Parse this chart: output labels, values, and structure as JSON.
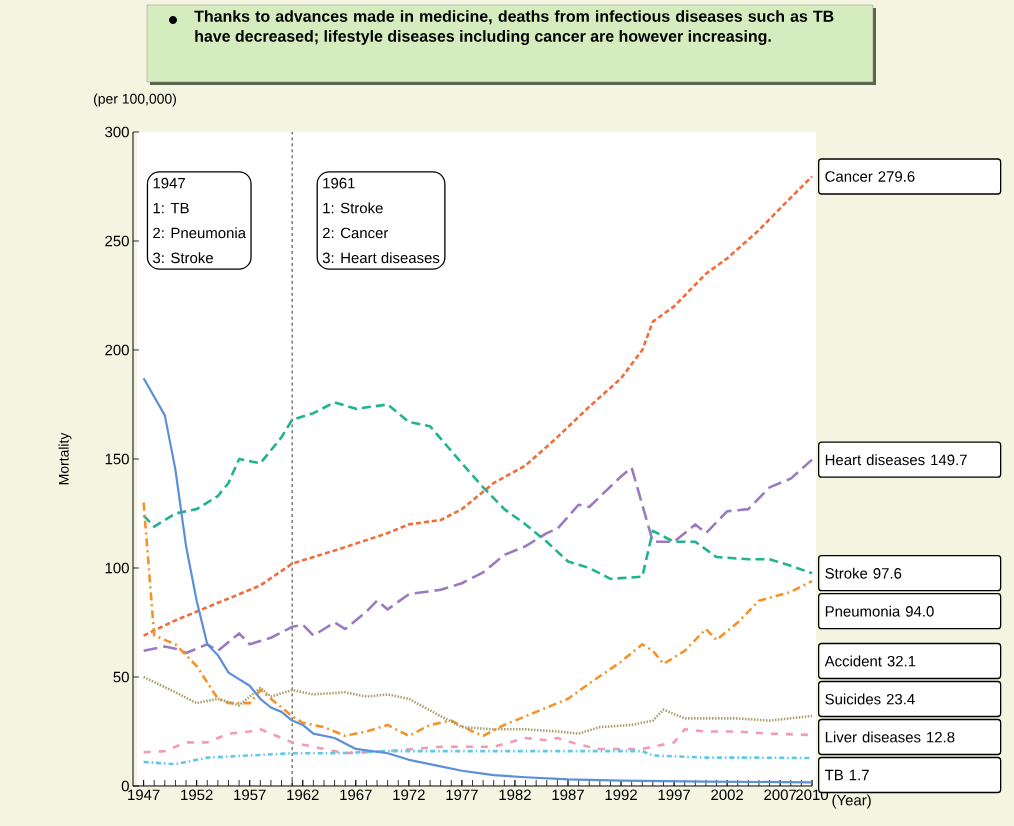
{
  "chart_data": {
    "type": "line",
    "title": "Thanks to advances made in medicine, deaths from infectious diseases such as TB have decreased; lifestyle diseases including cancer are however increasing.",
    "ylabel": "Mortality",
    "xlabel": "(Year)",
    "annotations": [
      "(per 100,000)",
      "1947",
      "1: TB",
      "2: Pneumonia",
      "3: Stroke",
      "1961",
      "1: Stroke",
      "2: Cancer",
      "3: Heart diseases"
    ],
    "xlim": [
      1946,
      2010
    ],
    "ylim": [
      0,
      300
    ],
    "xticks": [
      1947,
      1952,
      1957,
      1962,
      1967,
      1972,
      1977,
      1982,
      1987,
      1992,
      1997,
      2002,
      2007,
      2010
    ],
    "yticks": [
      0,
      50,
      100,
      150,
      200,
      250,
      300
    ],
    "ref_lines": [
      {
        "axis": "x",
        "value": 1961,
        "color": "#000000",
        "line_style": "dashed"
      }
    ],
    "series": [
      {
        "name": "Cancer 279.6",
        "color": "#f26b3a",
        "line_style": "dashed",
        "x": [
          1947,
          1950,
          1953,
          1956,
          1958,
          1961,
          1965,
          1970,
          1972,
          1975,
          1977,
          1980,
          1983,
          1986,
          1989,
          1992,
          1994,
          1995,
          1997,
          2000,
          2002,
          2005,
          2007,
          2010
        ],
        "values": [
          69.0,
          76,
          82,
          88,
          92,
          102,
          108,
          116,
          120,
          122,
          127,
          139,
          147,
          160,
          174,
          187,
          200,
          213,
          220,
          235,
          242,
          255,
          265,
          279.6
        ]
      },
      {
        "name": "Heart diseases 149.7",
        "color": "#9b7bc0",
        "line_style": "dashed",
        "x": [
          1947,
          1949,
          1950,
          1951,
          1953,
          1954,
          1956,
          1957,
          1959,
          1961,
          1962,
          1963,
          1965,
          1966,
          1968,
          1969,
          1970,
          1972,
          1975,
          1977,
          1979,
          1981,
          1983,
          1985,
          1986,
          1988,
          1989,
          1992,
          1993,
          1995,
          1997,
          1999,
          2000,
          2002,
          2004,
          2006,
          2008,
          2010
        ],
        "values": [
          62,
          64,
          63,
          61,
          65,
          62,
          70,
          65,
          68,
          73,
          74,
          69,
          75,
          72,
          80,
          85,
          81,
          88,
          90,
          93,
          98,
          106,
          110,
          116,
          118,
          129,
          128,
          142,
          146,
          112,
          112,
          120,
          116,
          126,
          127,
          137,
          141,
          149.7
        ]
      },
      {
        "name": "Stroke 97.6",
        "color": "#1fb38e",
        "line_style": "dashed",
        "x": [
          1947,
          1948,
          1950,
          1952,
          1954,
          1955,
          1956,
          1958,
          1960,
          1961,
          1963,
          1965,
          1967,
          1970,
          1972,
          1974,
          1977,
          1979,
          1981,
          1983,
          1985,
          1987,
          1989,
          1991,
          1994,
          1995,
          1997,
          1999,
          2001,
          2004,
          2006,
          2008,
          2010
        ],
        "values": [
          124,
          119,
          125,
          127,
          133,
          139,
          150,
          148,
          160,
          168,
          171,
          176,
          173,
          175,
          167,
          165,
          148,
          137,
          127,
          120,
          112,
          103,
          100,
          95,
          96,
          117,
          112,
          112,
          105,
          104,
          104,
          101,
          97.6
        ]
      },
      {
        "name": "Pneumonia 94.0",
        "color": "#f5922a",
        "line_style": "dashed",
        "x": [
          1947,
          1948,
          1950,
          1952,
          1954,
          1955,
          1957,
          1958,
          1960,
          1961,
          1962,
          1964,
          1966,
          1968,
          1970,
          1972,
          1974,
          1976,
          1978,
          1979,
          1981,
          1984,
          1987,
          1989,
          1992,
          1994,
          1995,
          1996,
          1998,
          2000,
          2001,
          2003,
          2005,
          2008,
          2010
        ],
        "values": [
          130,
          69,
          65,
          55,
          40,
          38,
          38,
          44,
          36,
          32,
          29,
          27,
          23,
          25,
          28,
          23,
          28,
          30,
          25,
          23,
          28,
          34,
          40,
          47,
          57,
          65,
          62,
          56,
          62,
          72,
          67,
          75,
          85,
          89,
          94.0
        ]
      },
      {
        "name": "Accident 32.1",
        "color": "#a89f6a",
        "line_style": "dotted",
        "x": [
          1947,
          1950,
          1952,
          1954,
          1956,
          1958,
          1959,
          1961,
          1963,
          1966,
          1968,
          1970,
          1972,
          1975,
          1977,
          1980,
          1983,
          1986,
          1988,
          1990,
          1993,
          1995,
          1996,
          1998,
          2003,
          2006,
          2010
        ],
        "values": [
          50,
          43,
          38,
          40,
          37,
          45,
          41,
          44,
          42,
          43,
          41,
          42,
          40,
          32,
          27,
          26,
          26,
          25,
          24,
          27,
          28,
          30,
          35,
          31,
          31,
          30,
          32.1
        ]
      },
      {
        "name": "Suicides 23.4",
        "color": "#f29ab8",
        "line_style": "dashed",
        "x": [
          1947,
          1949,
          1951,
          1953,
          1955,
          1957,
          1958,
          1959,
          1961,
          1963,
          1966,
          1970,
          1975,
          1980,
          1983,
          1985,
          1986,
          1988,
          1990,
          1994,
          1997,
          1998,
          2000,
          2003,
          2006,
          2010
        ],
        "values": [
          15.5,
          16,
          20,
          20,
          24,
          25,
          26,
          24,
          20,
          18,
          15,
          16,
          18,
          18,
          22,
          21,
          22,
          19,
          17,
          17,
          20,
          26,
          25,
          25,
          24,
          23.4
        ]
      },
      {
        "name": "Liver diseases 12.8",
        "color": "#5ec8e8",
        "line_style": "dashed",
        "x": [
          1947,
          1950,
          1953,
          1957,
          1961,
          1965,
          1970,
          1975,
          1980,
          1985,
          1990,
          1994,
          1995,
          2000,
          2005,
          2010
        ],
        "values": [
          11,
          10,
          13,
          14,
          15,
          15,
          16,
          16,
          16,
          16,
          16,
          16,
          14,
          13,
          13,
          12.8
        ]
      },
      {
        "name": "TB 1.7",
        "color": "#5b8fd8",
        "line_style": "solid",
        "x": [
          1947,
          1949,
          1950,
          1951,
          1952,
          1953,
          1954,
          1955,
          1956,
          1957,
          1958,
          1959,
          1960,
          1961,
          1962,
          1963,
          1965,
          1967,
          1970,
          1972,
          1975,
          1977,
          1980,
          1983,
          1987,
          1992,
          2000,
          2010
        ],
        "values": [
          187,
          170,
          145,
          110,
          85,
          65,
          60,
          52,
          49,
          46,
          40,
          36,
          34,
          30,
          28,
          24,
          22,
          17,
          15,
          12,
          9,
          7,
          5,
          4,
          3,
          2.5,
          2,
          1.7
        ]
      }
    ]
  }
}
